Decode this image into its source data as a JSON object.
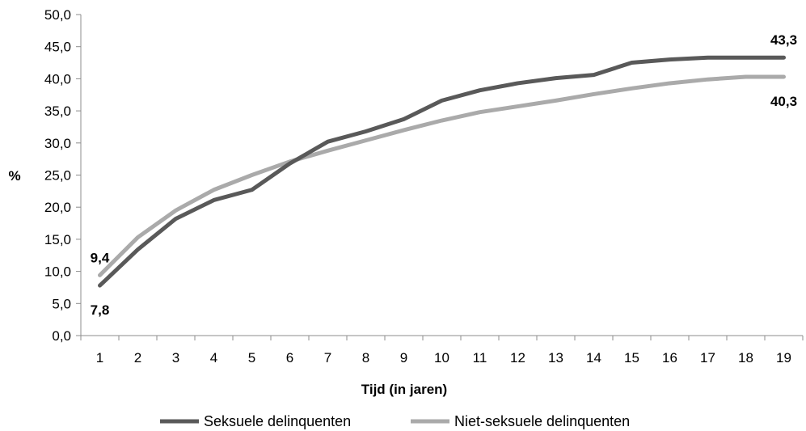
{
  "chart_data": {
    "type": "line",
    "title": "",
    "xlabel": "Tijd (in jaren)",
    "ylabel": "%",
    "x": [
      1,
      2,
      3,
      4,
      5,
      6,
      7,
      8,
      9,
      10,
      11,
      12,
      13,
      14,
      15,
      16,
      17,
      18,
      19
    ],
    "ylim": [
      0,
      50
    ],
    "ytick_step": 5,
    "yticks": [
      "0,0",
      "5,0",
      "10,0",
      "15,0",
      "20,0",
      "25,0",
      "30,0",
      "35,0",
      "40,0",
      "45,0",
      "50,0"
    ],
    "grid": false,
    "legend_position": "bottom",
    "series": [
      {
        "name": "Seksuele delinquenten",
        "color": "#595959",
        "values": [
          7.8,
          13.4,
          18.2,
          21.1,
          22.7,
          26.8,
          30.2,
          31.8,
          33.7,
          36.6,
          38.2,
          39.3,
          40.1,
          40.6,
          42.5,
          43.0,
          43.3,
          43.3,
          43.3
        ]
      },
      {
        "name": "Niet-seksuele delinquenten",
        "color": "#aaaaaa",
        "values": [
          9.4,
          15.3,
          19.5,
          22.7,
          25.0,
          27.1,
          28.8,
          30.4,
          32.0,
          33.5,
          34.8,
          35.7,
          36.6,
          37.6,
          38.5,
          39.3,
          39.9,
          40.3,
          40.3
        ]
      }
    ],
    "annotations": [
      {
        "text": "9,4",
        "series": 1,
        "x": 1,
        "position": "above"
      },
      {
        "text": "7,8",
        "series": 0,
        "x": 1,
        "position": "below"
      },
      {
        "text": "43,3",
        "series": 0,
        "x": 19,
        "position": "above"
      },
      {
        "text": "40,3",
        "series": 1,
        "x": 19,
        "position": "below"
      }
    ]
  }
}
